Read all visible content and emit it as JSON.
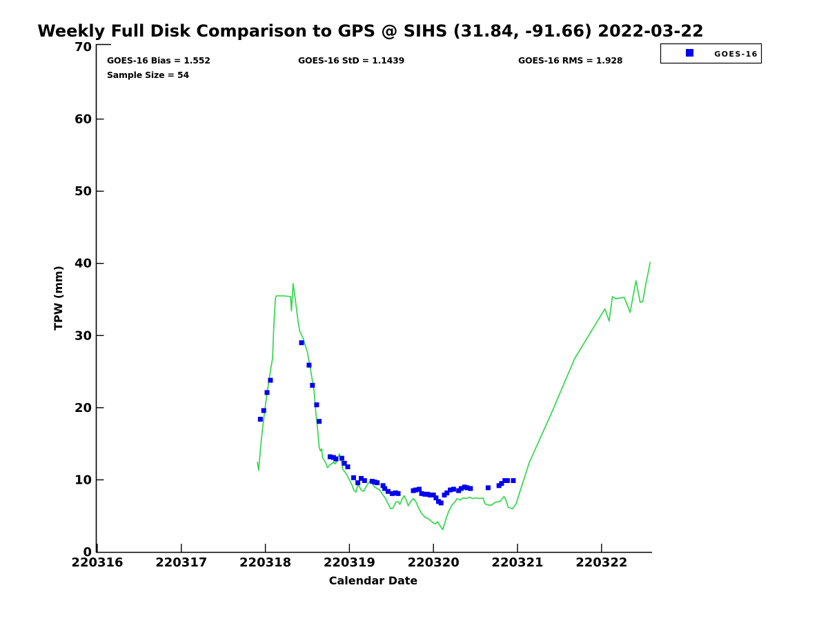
{
  "chart_data": {
    "type": "line",
    "title": "Weekly Full Disk Comparison to GPS @ SIHS (31.84, -91.66) 2022-03-22",
    "xlabel": "Calendar Date",
    "ylabel": "TPW (mm)",
    "grid": false,
    "ylim": [
      0,
      70
    ],
    "y_ticks": [
      0,
      10,
      20,
      30,
      40,
      50,
      60,
      70
    ],
    "x_tick_labels": [
      "220316",
      "220317",
      "220318",
      "220319",
      "220320",
      "220321",
      "220322"
    ],
    "annotations": {
      "bias": "GOES-16 Bias = 1.552",
      "std": "GOES-16 StD = 1.1439",
      "rms": "GOES-16 RMS = 1.928",
      "sample": "Sample Size = 54"
    },
    "legend": {
      "label": "GOES-16",
      "marker": "square",
      "position": "top-right-outside"
    },
    "colors": {
      "line": "#32d74b",
      "marker": "#0000ee",
      "axis": "#000000",
      "background": "#ffffff"
    },
    "line_series": {
      "x_days_from_220316": [
        1.905,
        1.92,
        1.935,
        1.95,
        1.965,
        1.99,
        2.02,
        2.04,
        2.055,
        2.07,
        2.085,
        2.1,
        2.12,
        2.13,
        2.22,
        2.3,
        2.31,
        2.33,
        2.36,
        2.39,
        2.41,
        2.45,
        2.5,
        2.54,
        2.58,
        2.6,
        2.62,
        2.64,
        2.655,
        2.67,
        2.68,
        2.72,
        2.74,
        2.77,
        2.8,
        2.81,
        2.83,
        2.85,
        2.88,
        2.9,
        2.92,
        2.97,
        3.0,
        3.03,
        3.05,
        3.08,
        3.1,
        3.14,
        3.17,
        3.21,
        3.25,
        3.3,
        3.36,
        3.4,
        3.43,
        3.46,
        3.49,
        3.52,
        3.55,
        3.58,
        3.6,
        3.63,
        3.65,
        3.68,
        3.7,
        3.73,
        3.76,
        3.79,
        3.82,
        3.85,
        3.9,
        3.94,
        3.99,
        4.02,
        4.05,
        4.07,
        4.11,
        4.15,
        4.18,
        4.22,
        4.26,
        4.28,
        4.32,
        4.35,
        4.39,
        4.43,
        4.47,
        4.51,
        4.55,
        4.59,
        4.61,
        4.65,
        4.69,
        4.74,
        4.79,
        4.84,
        4.86,
        4.89,
        4.94,
        4.98,
        5.14,
        5.41,
        5.68,
        5.93,
        6.04,
        6.09,
        6.13,
        6.17,
        6.27,
        6.34,
        6.41,
        6.46,
        6.49,
        6.53,
        6.58
      ],
      "values": [
        12.5,
        11.3,
        13.4,
        15.3,
        16.9,
        19.4,
        22.0,
        23.6,
        24.7,
        25.8,
        26.8,
        31.3,
        35.2,
        35.5,
        35.5,
        35.4,
        33.4,
        37.2,
        34.7,
        31.9,
        30.6,
        29.6,
        27.7,
        25.1,
        22.3,
        19.4,
        17.2,
        14.5,
        14.0,
        14.3,
        13.1,
        12.3,
        11.7,
        12.1,
        12.3,
        12.5,
        12.2,
        12.6,
        13.6,
        12.9,
        11.5,
        10.7,
        10.0,
        9.3,
        8.6,
        8.3,
        9.4,
        8.6,
        8.4,
        9.3,
        9.9,
        9.0,
        8.6,
        7.9,
        7.4,
        6.7,
        6.0,
        6.1,
        6.9,
        7.0,
        6.6,
        7.4,
        7.8,
        7.1,
        6.4,
        7.0,
        7.4,
        7.0,
        6.2,
        5.5,
        4.8,
        4.6,
        4.1,
        3.9,
        4.2,
        3.8,
        3.1,
        4.6,
        5.6,
        6.5,
        7.0,
        7.4,
        7.2,
        7.5,
        7.4,
        7.6,
        7.4,
        7.5,
        7.4,
        7.5,
        6.7,
        6.5,
        6.5,
        6.9,
        7.0,
        7.7,
        7.3,
        6.2,
        6.0,
        6.6,
        12.4,
        19.4,
        26.8,
        31.6,
        33.7,
        32.0,
        35.4,
        35.1,
        35.3,
        33.2,
        37.6,
        34.6,
        34.7,
        37.3,
        40.2
      ]
    },
    "scatter_series": {
      "label": "GOES-16",
      "sample_size": 54,
      "x_days_from_220316": [
        1.94,
        1.98,
        2.02,
        2.06,
        2.43,
        2.52,
        2.56,
        2.61,
        2.64,
        2.77,
        2.81,
        2.84,
        2.91,
        2.94,
        2.98,
        3.05,
        3.1,
        3.14,
        3.18,
        3.27,
        3.3,
        3.33,
        3.4,
        3.42,
        3.46,
        3.51,
        3.55,
        3.58,
        3.76,
        3.79,
        3.83,
        3.86,
        3.9,
        3.93,
        3.96,
        4.0,
        4.03,
        4.06,
        4.09,
        4.13,
        4.16,
        4.2,
        4.24,
        4.3,
        4.33,
        4.37,
        4.4,
        4.44,
        4.65,
        4.78,
        4.81,
        4.85,
        4.88,
        4.95
      ],
      "values": [
        18.4,
        19.6,
        22.1,
        23.8,
        29.0,
        25.9,
        23.1,
        20.4,
        18.1,
        13.2,
        13.1,
        12.9,
        13.0,
        12.3,
        11.8,
        10.3,
        9.6,
        10.2,
        9.9,
        9.8,
        9.7,
        9.6,
        9.2,
        8.8,
        8.4,
        8.1,
        8.2,
        8.1,
        8.5,
        8.6,
        8.7,
        8.1,
        8.0,
        8.0,
        7.9,
        7.9,
        7.5,
        7.0,
        6.8,
        7.9,
        8.2,
        8.6,
        8.7,
        8.5,
        8.8,
        9.0,
        8.9,
        8.8,
        8.9,
        9.2,
        9.5,
        9.9,
        9.9,
        9.9
      ]
    }
  }
}
